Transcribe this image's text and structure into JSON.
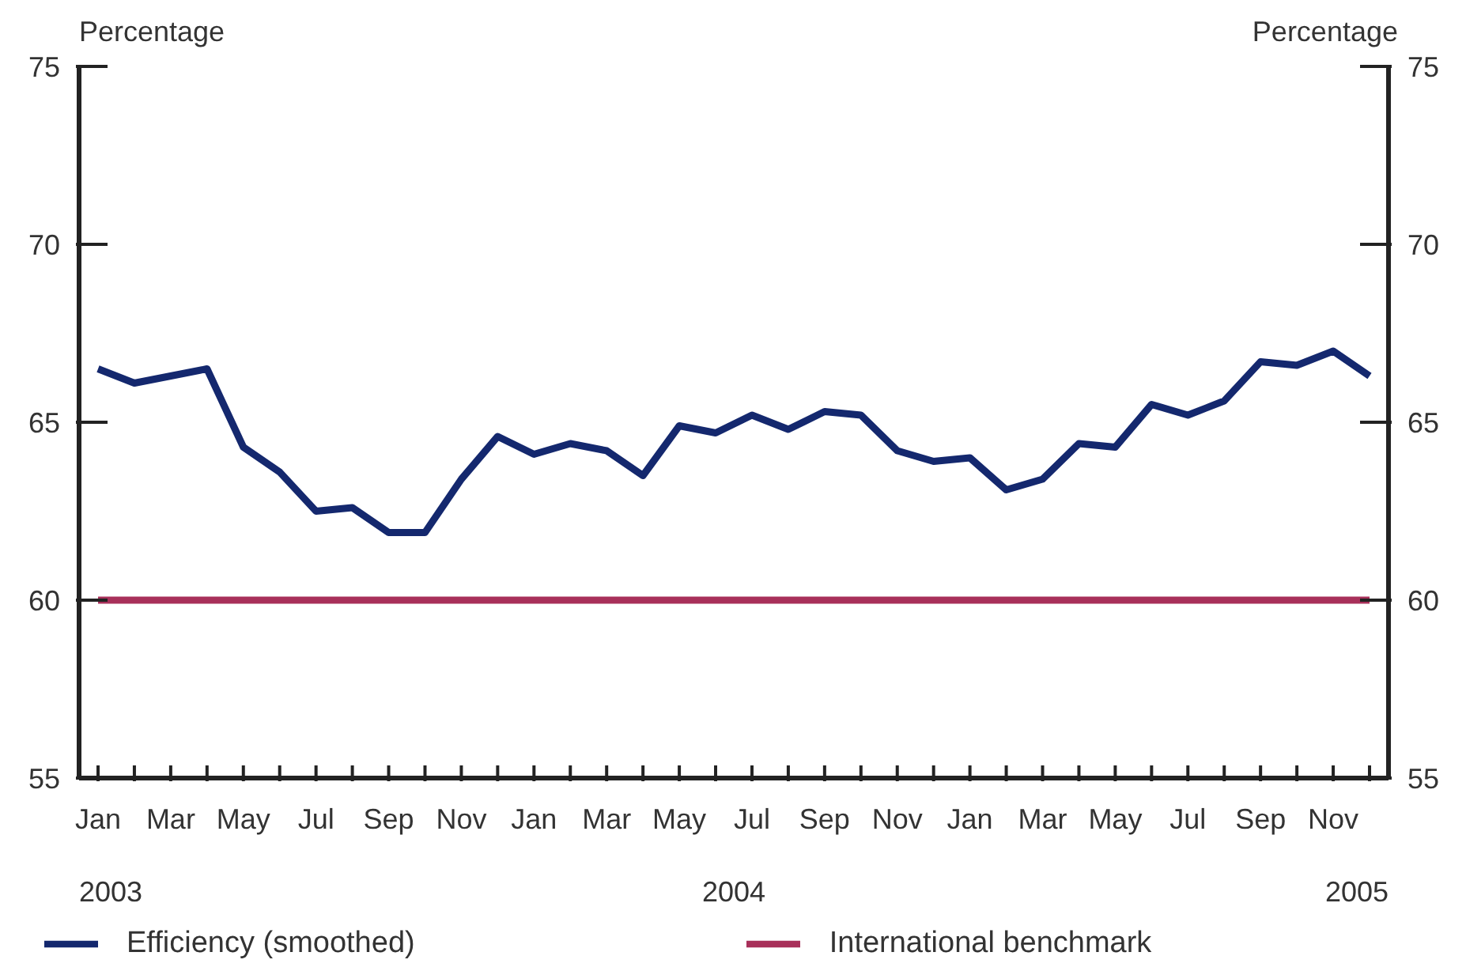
{
  "chart_data": {
    "type": "line",
    "ylabel": "Percentage",
    "y2label": "Percentage",
    "categories": [
      "Jan",
      null,
      "Mar",
      null,
      "May",
      null,
      "Jul",
      null,
      "Sep",
      null,
      "Nov",
      null,
      "Jan",
      null,
      "Mar",
      null,
      "May",
      null,
      "Jul",
      null,
      "Sep",
      null,
      "Nov",
      null,
      "Jan",
      null,
      "Mar",
      null,
      "May",
      null,
      "Jul",
      null,
      "Sep",
      null,
      "Nov",
      null
    ],
    "series": [
      {
        "name": "Efficiency (smoothed)",
        "color": "#14286e",
        "values": [
          66.5,
          66.1,
          66.3,
          66.5,
          64.3,
          63.6,
          62.5,
          62.6,
          61.9,
          61.9,
          63.4,
          64.6,
          64.1,
          64.4,
          64.2,
          63.5,
          64.9,
          64.7,
          65.2,
          64.8,
          65.3,
          65.2,
          64.2,
          63.9,
          64.0,
          63.1,
          63.4,
          64.4,
          64.3,
          65.5,
          65.2,
          65.6,
          66.7,
          66.6,
          67.0,
          66.3
        ]
      },
      {
        "name": "International benchmark",
        "color": "#a8305a",
        "values": [
          60,
          60,
          60,
          60,
          60,
          60,
          60,
          60,
          60,
          60,
          60,
          60,
          60,
          60,
          60,
          60,
          60,
          60,
          60,
          60,
          60,
          60,
          60,
          60,
          60,
          60,
          60,
          60,
          60,
          60,
          60,
          60,
          60,
          60,
          60,
          60
        ]
      }
    ],
    "ylim": [
      55,
      75
    ],
    "yticks": [
      55,
      60,
      65,
      70,
      75
    ],
    "y2lim": [
      55,
      75
    ],
    "y2ticks": [
      55,
      60,
      65,
      70,
      75
    ],
    "annotations": [
      "2003",
      "2004",
      "2005"
    ],
    "grid": false,
    "legend": "bottom",
    "marker": "none",
    "line_style": "solid"
  }
}
